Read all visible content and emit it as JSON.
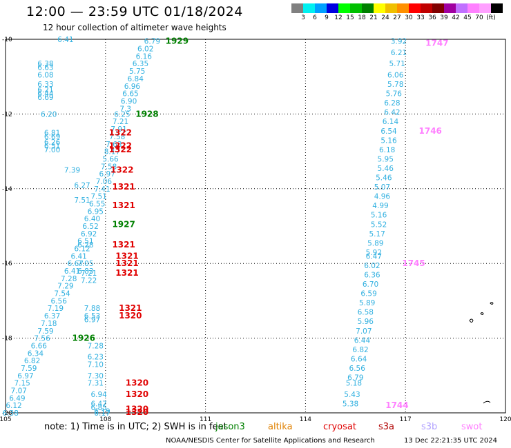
{
  "title": "12:00 — 23:59 UTC 01/18/2024",
  "subtitle": "12 hour collection of altimeter wave heights",
  "legend": {
    "unit": "(ft)",
    "colors": [
      "#808080",
      "#00f0f0",
      "#00a0ff",
      "#0000e0",
      "#00ff00",
      "#00c000",
      "#008000",
      "#ffff00",
      "#f0c000",
      "#ff9000",
      "#ff0000",
      "#c00000",
      "#800000",
      "#a000a0",
      "#c070ff",
      "#ff80ff",
      "#ffa0ff",
      "#000000"
    ],
    "labels": [
      "3",
      "6",
      "9",
      "12",
      "15",
      "18",
      "21",
      "24",
      "27",
      "30",
      "33",
      "36",
      "39",
      "42",
      "45",
      "70",
      "(ft)"
    ]
  },
  "axes": {
    "x_ticks": [
      "105",
      "108",
      "111",
      "114",
      "117",
      "120"
    ],
    "y_ticks": [
      "-10",
      "-12",
      "-14",
      "-16",
      "-18",
      "-20"
    ]
  },
  "colors": {
    "swh": "#30b0e0",
    "jason3": "#008000",
    "altika": "#e08000",
    "cryosat": "#e00000",
    "s3a": "#b00000",
    "s3b": "#b0a0ff",
    "swot": "#ff80ff"
  },
  "footer": {
    "note": "note:  1) Time is in UTC; 2) SWH is in feet",
    "satellites": [
      {
        "label": "jason3",
        "color": "#008000"
      },
      {
        "label": "altika",
        "color": "#e08000"
      },
      {
        "label": "cryosat",
        "color": "#e00000"
      },
      {
        "label": "s3a",
        "color": "#b00000"
      },
      {
        "label": "s3b",
        "color": "#b0a0ff"
      },
      {
        "label": "swot",
        "color": "#ff80ff"
      }
    ],
    "credit": "NOAA/NESDIS Center for Satellite Applications and Research",
    "timestamp": "13 Dec 22:21:35 UTC 2024"
  },
  "chart_data": {
    "type": "scatter",
    "xlim": [
      105,
      120
    ],
    "ylim": [
      -20,
      -10
    ],
    "grid": true,
    "series": [
      {
        "name": "jason3",
        "color": "#008000",
        "track_labels": [
          {
            "lon": 109.8,
            "lat": -10.05,
            "text": "1929"
          },
          {
            "lon": 108.9,
            "lat": -12.0,
            "text": "1928"
          },
          {
            "lon": 108.2,
            "lat": -14.95,
            "text": "1927"
          },
          {
            "lon": 107.0,
            "lat": -18.0,
            "text": "1926"
          }
        ],
        "points": [
          {
            "lon": 109.4,
            "lat": -10.05,
            "v": "6.79"
          },
          {
            "lon": 109.2,
            "lat": -10.25,
            "v": "6.02"
          },
          {
            "lon": 109.15,
            "lat": -10.45,
            "v": "6.16"
          },
          {
            "lon": 109.05,
            "lat": -10.65,
            "v": "6.35"
          },
          {
            "lon": 108.95,
            "lat": -10.85,
            "v": "5.75"
          },
          {
            "lon": 108.9,
            "lat": -11.05,
            "v": "6.84"
          },
          {
            "lon": 108.8,
            "lat": -11.25,
            "v": "6.96"
          },
          {
            "lon": 108.75,
            "lat": -11.45,
            "v": "6.65"
          },
          {
            "lon": 108.7,
            "lat": -11.65,
            "v": "6.90"
          },
          {
            "lon": 108.6,
            "lat": -11.85,
            "v": "7.3"
          },
          {
            "lon": 108.5,
            "lat": -12.0,
            "v": "6.25"
          },
          {
            "lon": 108.45,
            "lat": -12.2,
            "v": "7.21"
          },
          {
            "lon": 108.4,
            "lat": -12.4,
            "v": "7.91"
          },
          {
            "lon": 108.35,
            "lat": -12.6,
            "v": "7.58"
          },
          {
            "lon": 108.25,
            "lat": -12.8,
            "v": "7.63"
          },
          {
            "lon": 108.2,
            "lat": -13.0,
            "v": "8.17"
          },
          {
            "lon": 108.15,
            "lat": -13.2,
            "v": "5.66"
          },
          {
            "lon": 108.1,
            "lat": -13.4,
            "v": "7.58"
          },
          {
            "lon": 108.05,
            "lat": -13.6,
            "v": "6.97"
          },
          {
            "lon": 107.95,
            "lat": -13.8,
            "v": "7.06"
          },
          {
            "lon": 107.9,
            "lat": -14.0,
            "v": "7.41"
          },
          {
            "lon": 107.8,
            "lat": -14.2,
            "v": "7.51"
          },
          {
            "lon": 107.75,
            "lat": -14.4,
            "v": "6.55"
          },
          {
            "lon": 107.7,
            "lat": -14.6,
            "v": "6.95"
          },
          {
            "lon": 107.6,
            "lat": -14.8,
            "v": "6.40"
          },
          {
            "lon": 107.55,
            "lat": -15.0,
            "v": "6.52"
          },
          {
            "lon": 107.5,
            "lat": -15.2,
            "v": "6.92"
          },
          {
            "lon": 107.4,
            "lat": -15.4,
            "v": "6.51"
          },
          {
            "lon": 107.3,
            "lat": -15.6,
            "v": "6.12"
          },
          {
            "lon": 107.2,
            "lat": -15.8,
            "v": "6.41"
          },
          {
            "lon": 107.1,
            "lat": -16.0,
            "v": "6.67"
          },
          {
            "lon": 107.0,
            "lat": -16.2,
            "v": "6.41"
          },
          {
            "lon": 106.9,
            "lat": -16.4,
            "v": "7.28"
          },
          {
            "lon": 106.8,
            "lat": -16.6,
            "v": "7.29"
          },
          {
            "lon": 106.7,
            "lat": -16.8,
            "v": "7.54"
          },
          {
            "lon": 106.6,
            "lat": -17.0,
            "v": "6.56"
          },
          {
            "lon": 106.5,
            "lat": -17.2,
            "v": "7.19"
          },
          {
            "lon": 106.4,
            "lat": -17.4,
            "v": "6.37"
          },
          {
            "lon": 106.3,
            "lat": -17.6,
            "v": "7.18"
          },
          {
            "lon": 106.2,
            "lat": -17.8,
            "v": "7.59"
          },
          {
            "lon": 106.1,
            "lat": -18.0,
            "v": "7.56"
          },
          {
            "lon": 106.0,
            "lat": -18.2,
            "v": "6.66"
          },
          {
            "lon": 105.9,
            "lat": -18.4,
            "v": "6.34"
          },
          {
            "lon": 105.8,
            "lat": -18.6,
            "v": "6.82"
          },
          {
            "lon": 105.7,
            "lat": -18.8,
            "v": "7.59"
          },
          {
            "lon": 105.6,
            "lat": -19.0,
            "v": "6.97"
          },
          {
            "lon": 105.5,
            "lat": -19.2,
            "v": "7.15"
          },
          {
            "lon": 105.4,
            "lat": -19.4,
            "v": "7.07"
          },
          {
            "lon": 105.35,
            "lat": -19.6,
            "v": "6.49"
          },
          {
            "lon": 105.25,
            "lat": -19.8,
            "v": "6.12"
          },
          {
            "lon": 105.15,
            "lat": -20.0,
            "v": "6.38"
          }
        ]
      },
      {
        "name": "cryosat",
        "color": "#e00000",
        "track_labels": [
          {
            "lon": 108.1,
            "lat": -12.5,
            "text": "1322"
          },
          {
            "lon": 108.1,
            "lat": -12.85,
            "text": "1322"
          },
          {
            "lon": 108.1,
            "lat": -12.95,
            "text": "1322"
          },
          {
            "lon": 108.15,
            "lat": -13.5,
            "text": "1322"
          },
          {
            "lon": 108.2,
            "lat": -13.95,
            "text": "1321"
          },
          {
            "lon": 108.2,
            "lat": -14.45,
            "text": "1321"
          },
          {
            "lon": 108.2,
            "lat": -15.5,
            "text": "1321"
          },
          {
            "lon": 108.3,
            "lat": -15.8,
            "text": "1321"
          },
          {
            "lon": 108.3,
            "lat": -16.0,
            "text": "1321"
          },
          {
            "lon": 108.3,
            "lat": -16.25,
            "text": "1321"
          },
          {
            "lon": 108.4,
            "lat": -17.2,
            "text": "1321"
          },
          {
            "lon": 108.4,
            "lat": -17.4,
            "text": "1320"
          },
          {
            "lon": 108.6,
            "lat": -19.2,
            "text": "1320"
          },
          {
            "lon": 108.6,
            "lat": -19.5,
            "text": "1320"
          },
          {
            "lon": 108.6,
            "lat": -19.9,
            "text": "1320"
          },
          {
            "lon": 108.6,
            "lat": -19.98,
            "text": "1320"
          }
        ],
        "points": [
          {
            "lon": 106.8,
            "lat": -10.0,
            "v": "6.41"
          },
          {
            "lon": 106.2,
            "lat": -10.65,
            "v": "6.38"
          },
          {
            "lon": 106.2,
            "lat": -10.75,
            "v": "6.63"
          },
          {
            "lon": 106.2,
            "lat": -10.95,
            "v": "6.08"
          },
          {
            "lon": 106.2,
            "lat": -11.2,
            "v": "6.33"
          },
          {
            "lon": 106.2,
            "lat": -11.35,
            "v": "6.21"
          },
          {
            "lon": 106.2,
            "lat": -11.45,
            "v": "6.44"
          },
          {
            "lon": 106.2,
            "lat": -11.55,
            "v": "6.69"
          },
          {
            "lon": 106.3,
            "lat": -12.0,
            "v": "6.20"
          },
          {
            "lon": 106.4,
            "lat": -12.5,
            "v": "6.81"
          },
          {
            "lon": 106.4,
            "lat": -12.6,
            "v": "6.69"
          },
          {
            "lon": 106.4,
            "lat": -12.75,
            "v": "6.26"
          },
          {
            "lon": 106.4,
            "lat": -12.85,
            "v": "6.51"
          },
          {
            "lon": 106.4,
            "lat": -12.95,
            "v": "7.00"
          },
          {
            "lon": 107.0,
            "lat": -13.5,
            "v": "7.39"
          },
          {
            "lon": 107.3,
            "lat": -13.9,
            "v": "6.27"
          },
          {
            "lon": 107.3,
            "lat": -14.3,
            "v": "7.51"
          },
          {
            "lon": 107.4,
            "lat": -15.5,
            "v": "6.28"
          },
          {
            "lon": 107.4,
            "lat": -16.0,
            "v": "7.05"
          },
          {
            "lon": 107.4,
            "lat": -16.2,
            "v": "6.83"
          },
          {
            "lon": 107.5,
            "lat": -16.25,
            "v": "7.21"
          },
          {
            "lon": 107.5,
            "lat": -16.45,
            "v": "7.22"
          },
          {
            "lon": 107.6,
            "lat": -17.2,
            "v": "7.88"
          },
          {
            "lon": 107.6,
            "lat": -17.4,
            "v": "6.53"
          },
          {
            "lon": 107.6,
            "lat": -17.5,
            "v": "6.97"
          },
          {
            "lon": 107.7,
            "lat": -18.2,
            "v": "7.28"
          },
          {
            "lon": 107.7,
            "lat": -18.5,
            "v": "6.23"
          },
          {
            "lon": 107.7,
            "lat": -18.7,
            "v": "7.10"
          },
          {
            "lon": 107.7,
            "lat": -19.0,
            "v": "7.30"
          },
          {
            "lon": 107.7,
            "lat": -19.2,
            "v": "7.31"
          },
          {
            "lon": 107.8,
            "lat": -19.5,
            "v": "6.94"
          },
          {
            "lon": 107.8,
            "lat": -19.75,
            "v": "6.47"
          },
          {
            "lon": 107.8,
            "lat": -19.85,
            "v": "6.85"
          },
          {
            "lon": 107.9,
            "lat": -19.95,
            "v": "6.19"
          },
          {
            "lon": 107.9,
            "lat": -20.0,
            "v": "6.17"
          }
        ]
      },
      {
        "name": "swot",
        "color": "#ff80ff",
        "track_labels": [
          {
            "lon": 117.6,
            "lat": -10.1,
            "text": "1747"
          },
          {
            "lon": 117.4,
            "lat": -12.45,
            "text": "1746"
          },
          {
            "lon": 116.9,
            "lat": -16.0,
            "text": "1745"
          },
          {
            "lon": 116.4,
            "lat": -19.8,
            "text": "1744"
          }
        ],
        "points": [
          {
            "lon": 116.8,
            "lat": -10.05,
            "v": "3.92"
          },
          {
            "lon": 116.8,
            "lat": -10.35,
            "v": "6.21"
          },
          {
            "lon": 116.75,
            "lat": -10.65,
            "v": "5.71"
          },
          {
            "lon": 116.7,
            "lat": -10.95,
            "v": "6.06"
          },
          {
            "lon": 116.7,
            "lat": -11.2,
            "v": "5.78"
          },
          {
            "lon": 116.65,
            "lat": -11.45,
            "v": "5.76"
          },
          {
            "lon": 116.6,
            "lat": -11.7,
            "v": "6.28"
          },
          {
            "lon": 116.6,
            "lat": -11.95,
            "v": "6.42"
          },
          {
            "lon": 116.55,
            "lat": -12.2,
            "v": "6.14"
          },
          {
            "lon": 116.5,
            "lat": -12.45,
            "v": "6.54"
          },
          {
            "lon": 116.5,
            "lat": -12.7,
            "v": "5.16"
          },
          {
            "lon": 116.45,
            "lat": -12.95,
            "v": "6.18"
          },
          {
            "lon": 116.4,
            "lat": -13.2,
            "v": "5.95"
          },
          {
            "lon": 116.4,
            "lat": -13.45,
            "v": "5.46"
          },
          {
            "lon": 116.35,
            "lat": -13.7,
            "v": "5.46"
          },
          {
            "lon": 116.3,
            "lat": -13.95,
            "v": "5.07"
          },
          {
            "lon": 116.3,
            "lat": -14.2,
            "v": "4.96"
          },
          {
            "lon": 116.25,
            "lat": -14.45,
            "v": "4.99"
          },
          {
            "lon": 116.2,
            "lat": -14.7,
            "v": "5.16"
          },
          {
            "lon": 116.2,
            "lat": -14.95,
            "v": "5.52"
          },
          {
            "lon": 116.15,
            "lat": -15.2,
            "v": "5.17"
          },
          {
            "lon": 116.1,
            "lat": -15.45,
            "v": "5.89"
          },
          {
            "lon": 116.05,
            "lat": -15.7,
            "v": "5.92"
          },
          {
            "lon": 116.05,
            "lat": -15.8,
            "v": "6.47"
          },
          {
            "lon": 116.0,
            "lat": -16.05,
            "v": "6.02"
          },
          {
            "lon": 116.0,
            "lat": -16.3,
            "v": "6.36"
          },
          {
            "lon": 115.95,
            "lat": -16.55,
            "v": "6.70"
          },
          {
            "lon": 115.9,
            "lat": -16.8,
            "v": "6.59"
          },
          {
            "lon": 115.85,
            "lat": -17.05,
            "v": "5.89"
          },
          {
            "lon": 115.8,
            "lat": -17.3,
            "v": "6.58"
          },
          {
            "lon": 115.8,
            "lat": -17.55,
            "v": "5.96"
          },
          {
            "lon": 115.75,
            "lat": -17.8,
            "v": "7.07"
          },
          {
            "lon": 115.7,
            "lat": -18.05,
            "v": "6.44"
          },
          {
            "lon": 115.65,
            "lat": -18.3,
            "v": "6.82"
          },
          {
            "lon": 115.6,
            "lat": -18.55,
            "v": "6.64"
          },
          {
            "lon": 115.55,
            "lat": -18.8,
            "v": "6.56"
          },
          {
            "lon": 115.5,
            "lat": -19.05,
            "v": "6.79"
          },
          {
            "lon": 115.45,
            "lat": -19.2,
            "v": "5.18"
          },
          {
            "lon": 115.4,
            "lat": -19.5,
            "v": "5.43"
          },
          {
            "lon": 115.35,
            "lat": -19.75,
            "v": "5.38"
          }
        ]
      }
    ]
  }
}
